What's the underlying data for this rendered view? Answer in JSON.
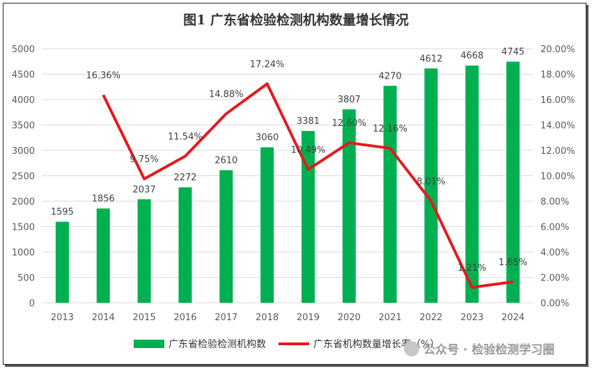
{
  "title": "图1 广东省检验检测机构数量增长情况",
  "colors": {
    "bar": "#00b050",
    "line": "#e41a1c",
    "grid": "#d9d9d9"
  },
  "watermark": {
    "text": "公众号 · 检验检测学习圈",
    "icon": "wechat-icon"
  },
  "chart_data": {
    "type": "bar",
    "title": "图1 广东省检验检测机构数量增长情况",
    "categories": [
      "2013",
      "2014",
      "2015",
      "2016",
      "2017",
      "2018",
      "2019",
      "2020",
      "2021",
      "2022",
      "2023",
      "2024"
    ],
    "series": [
      {
        "name": "广东省检验检测机构数",
        "type": "bar",
        "axis": "left",
        "values": [
          1595,
          1856,
          2037,
          2272,
          2610,
          3060,
          3381,
          3807,
          4270,
          4612,
          4668,
          4745
        ],
        "labels": [
          "1595",
          "1856",
          "2037",
          "2272",
          "2610",
          "3060",
          "3381",
          "3807",
          "4270",
          "4612",
          "4668",
          "4745"
        ]
      },
      {
        "name": "广东省机构数量增长率（%）",
        "type": "line",
        "axis": "right",
        "values": [
          null,
          16.36,
          9.75,
          11.54,
          14.88,
          17.24,
          10.49,
          12.6,
          12.16,
          8.01,
          1.21,
          1.65
        ],
        "labels": [
          "",
          "16.36%",
          "9.75%",
          "11.54%",
          "14.88%",
          "17.24%",
          "10.49%",
          "12.60%",
          "12.16%",
          "8.01%",
          "1.21%",
          "1.65%"
        ]
      }
    ],
    "y_left": {
      "ylim": [
        0,
        5000
      ],
      "ticks": [
        "0",
        "500",
        "1000",
        "1500",
        "2000",
        "2500",
        "3000",
        "3500",
        "4000",
        "4500",
        "5000"
      ]
    },
    "y_right": {
      "ylim": [
        0,
        20
      ],
      "ticks": [
        "0.00%",
        "2.00%",
        "4.00%",
        "6.00%",
        "8.00%",
        "10.00%",
        "12.00%",
        "14.00%",
        "16.00%",
        "18.00%",
        "20.00%"
      ]
    },
    "grid": true,
    "legend_position": "bottom"
  }
}
